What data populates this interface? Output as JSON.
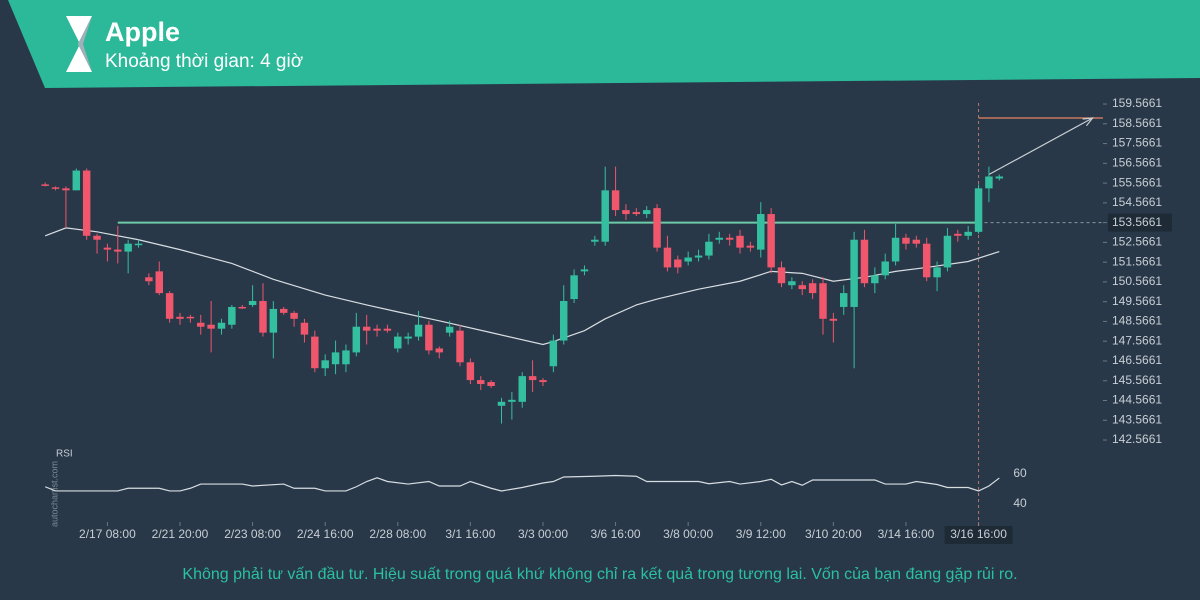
{
  "chart_data": {
    "type": "candlestick",
    "title": "Apple",
    "subtitle": "Khoảng thời gian: 4 giờ",
    "footer": "Không phải tư vấn đầu tư. Hiệu suất trong quá khứ không chỉ ra kết quả trong tương lai. Vốn của bạn đang gặp rủi ro.",
    "watermark": "autochartist.com",
    "up_color": "#34c0a0",
    "down_color": "#f0566c",
    "xlim": [
      -0.5,
      102
    ],
    "ylim": [
      142.3,
      159.77
    ],
    "yticks": [
      159.5661,
      158.5661,
      157.5661,
      156.5661,
      155.5661,
      154.5661,
      153.5661,
      152.5661,
      151.5661,
      150.5661,
      149.5661,
      148.5661,
      147.5661,
      146.5661,
      145.5661,
      144.5661,
      143.5661,
      142.5661
    ],
    "xticks": [
      {
        "value": 6,
        "label": "2/17 08:00"
      },
      {
        "value": 13,
        "label": "2/21 20:00"
      },
      {
        "value": 20,
        "label": "2/23 08:00"
      },
      {
        "value": 27,
        "label": "2/24 16:00"
      },
      {
        "value": 34,
        "label": "2/28 08:00"
      },
      {
        "value": 41,
        "label": "3/1 16:00"
      },
      {
        "value": 48,
        "label": "3/3 00:00"
      },
      {
        "value": 55,
        "label": "3/6 16:00"
      },
      {
        "value": 62,
        "label": "3/8 00:00"
      },
      {
        "value": 69,
        "label": "3/9 12:00"
      },
      {
        "value": 76,
        "label": "3/10 20:00"
      },
      {
        "value": 83,
        "label": "3/14 16:00"
      },
      {
        "value": 90,
        "label": "3/16 16:00"
      }
    ],
    "open": [
      155.5,
      155.35,
      155.3,
      155.2,
      156.2,
      152.9,
      152.3,
      152.2,
      152.1,
      152.5,
      150.8,
      151.1,
      150.0,
      148.8,
      148.8,
      148.5,
      148.4,
      148.2,
      148.4,
      149.3,
      149.4,
      149.6,
      148.0,
      149.2,
      149.0,
      148.5,
      147.8,
      146.2,
      146.4,
      146.4,
      147.0,
      148.3,
      148.2,
      148.2,
      147.2,
      147.7,
      147.8,
      148.4,
      147.2,
      148.0,
      148.1,
      146.5,
      145.6,
      145.5,
      144.3,
      144.5,
      144.5,
      145.8,
      145.6,
      146.3,
      147.6,
      149.7,
      151.1,
      152.6,
      152.6,
      155.2,
      154.2,
      154.1,
      154.0,
      154.3,
      152.3,
      151.7,
      151.6,
      151.8,
      151.9,
      152.7,
      152.8,
      152.9,
      152.4,
      152.2,
      154.0,
      151.3,
      150.4,
      150.4,
      150.5,
      150.5,
      148.7,
      149.3,
      149.3,
      152.7,
      150.5,
      150.9,
      151.6,
      152.8,
      152.7,
      152.5,
      150.8,
      151.3,
      153.0,
      152.9,
      153.1,
      155.3,
      155.8
    ],
    "high": [
      155.6,
      155.4,
      155.4,
      156.3,
      156.3,
      153.0,
      152.5,
      153.4,
      152.7,
      152.7,
      151.0,
      151.6,
      150.1,
      149.0,
      148.9,
      148.9,
      149.6,
      148.7,
      149.4,
      149.4,
      150.4,
      150.5,
      149.6,
      149.3,
      149.1,
      148.7,
      148.1,
      146.9,
      147.6,
      147.4,
      149.0,
      148.9,
      148.4,
      148.4,
      148.0,
      148.0,
      149.1,
      148.6,
      147.3,
      148.6,
      148.4,
      146.7,
      145.8,
      145.6,
      144.7,
      145.0,
      146.0,
      146.6,
      145.7,
      147.9,
      150.4,
      151.2,
      151.4,
      152.9,
      156.4,
      156.4,
      154.5,
      154.3,
      154.4,
      154.5,
      152.9,
      151.9,
      152.1,
      152.2,
      153.0,
      153.1,
      153.0,
      153.2,
      152.6,
      154.6,
      154.3,
      151.6,
      150.8,
      150.6,
      150.7,
      150.8,
      149.0,
      150.4,
      153.1,
      153.2,
      151.3,
      152.0,
      153.5,
      153.0,
      152.9,
      152.8,
      151.6,
      153.3,
      153.2,
      153.4,
      155.5,
      156.4,
      156.0
    ],
    "low": [
      155.4,
      155.2,
      153.3,
      155.2,
      152.7,
      152.0,
      151.6,
      151.5,
      151.0,
      152.3,
      150.4,
      149.9,
      148.5,
      148.4,
      148.5,
      147.9,
      147.0,
      147.9,
      148.2,
      149.2,
      149.3,
      147.8,
      146.7,
      148.9,
      148.3,
      147.5,
      146.0,
      145.8,
      145.9,
      146.0,
      146.8,
      147.4,
      147.8,
      148.0,
      147.0,
      147.4,
      147.6,
      146.9,
      146.7,
      147.8,
      146.3,
      145.4,
      145.1,
      145.2,
      143.4,
      143.6,
      144.2,
      145.0,
      145.3,
      146.0,
      147.4,
      149.5,
      150.9,
      152.4,
      152.4,
      153.9,
      153.7,
      153.9,
      153.8,
      152.1,
      151.1,
      151.0,
      151.4,
      151.6,
      151.7,
      152.5,
      152.4,
      152.0,
      152.1,
      151.8,
      151.0,
      150.3,
      150.2,
      149.9,
      149.7,
      147.9,
      147.5,
      148.9,
      146.2,
      150.3,
      150.0,
      150.7,
      151.4,
      152.2,
      152.3,
      150.6,
      150.1,
      151.1,
      152.6,
      152.7,
      153.0,
      154.6,
      155.7
    ],
    "close": [
      155.45,
      155.3,
      155.2,
      156.2,
      152.9,
      152.7,
      152.2,
      152.1,
      152.5,
      152.5,
      150.6,
      150.0,
      148.7,
      148.7,
      148.75,
      148.3,
      148.2,
      148.5,
      149.3,
      149.25,
      149.6,
      148.0,
      149.2,
      149.0,
      148.7,
      147.9,
      146.2,
      146.6,
      147.0,
      147.1,
      148.3,
      148.1,
      148.1,
      148.1,
      147.8,
      147.8,
      148.4,
      147.1,
      147.0,
      148.3,
      146.5,
      145.6,
      145.4,
      145.3,
      144.5,
      144.6,
      145.8,
      145.6,
      145.5,
      147.6,
      149.6,
      150.9,
      151.2,
      152.7,
      155.2,
      154.2,
      154.0,
      154.0,
      154.2,
      152.3,
      151.3,
      151.3,
      151.8,
      151.9,
      152.6,
      152.8,
      152.7,
      152.3,
      152.3,
      154.0,
      151.3,
      150.5,
      150.6,
      150.2,
      150.0,
      148.7,
      148.6,
      150.0,
      152.7,
      150.5,
      150.9,
      151.6,
      152.8,
      152.5,
      152.5,
      150.8,
      151.3,
      152.9,
      152.9,
      153.1,
      155.3,
      155.9,
      155.9
    ],
    "ma": {
      "color": "#d8dde2",
      "x": [
        0,
        2,
        5,
        9,
        13,
        18,
        22,
        27,
        31,
        34,
        38,
        43,
        48,
        49,
        52,
        54,
        57,
        59,
        63,
        67,
        70,
        73,
        76,
        79,
        82,
        85,
        89,
        92
      ],
      "values": [
        152.9,
        153.3,
        153.1,
        152.7,
        152.2,
        151.5,
        150.7,
        149.9,
        149.4,
        149.05,
        148.6,
        148.0,
        147.4,
        147.55,
        148.1,
        148.7,
        149.4,
        149.7,
        150.2,
        150.6,
        151.1,
        151.0,
        150.6,
        150.8,
        151.1,
        151.3,
        151.6,
        152.1
      ]
    },
    "rsi": {
      "name": "RSI",
      "color": "#d8dde2",
      "ylim": [
        35,
        70
      ],
      "yticks": [
        60,
        40
      ],
      "x": [
        0,
        1,
        7,
        8,
        11,
        12,
        13,
        14,
        15,
        19,
        20,
        23,
        24,
        26,
        27,
        29,
        30,
        31,
        32,
        33,
        35,
        37,
        38,
        40,
        41,
        43,
        44,
        46,
        47,
        48,
        49,
        50,
        53,
        55,
        57,
        58,
        63,
        64,
        66,
        67,
        69,
        70,
        71,
        72,
        73,
        74,
        76,
        80,
        81,
        83,
        84,
        86,
        87,
        89,
        90,
        91,
        92
      ],
      "values": [
        51.5,
        48.7,
        48.7,
        50.5,
        50.5,
        48.7,
        48.7,
        50.5,
        53.3,
        53.3,
        52,
        53.3,
        50.5,
        50.5,
        48.7,
        48.7,
        51.5,
        55,
        57.5,
        55,
        53.3,
        55,
        52,
        52,
        55,
        50.5,
        48.7,
        51,
        52.5,
        54,
        55,
        58,
        58.5,
        59,
        58.5,
        55,
        55,
        53.5,
        55,
        53.3,
        55,
        56.5,
        52.7,
        55,
        52.5,
        56,
        56,
        56,
        53.3,
        53.3,
        55,
        53,
        51,
        51,
        48.7,
        52,
        57.3
      ]
    },
    "resistance": {
      "value": 153.5661,
      "color": "#6fcaa8",
      "x": [
        7,
        102
      ]
    },
    "target": {
      "value": 158.86,
      "color": "#e8855e",
      "x": [
        90,
        102
      ]
    },
    "forecast": {
      "color": "#c8ced4",
      "x": [
        91,
        101
      ],
      "values": [
        156.0,
        158.86
      ]
    }
  }
}
